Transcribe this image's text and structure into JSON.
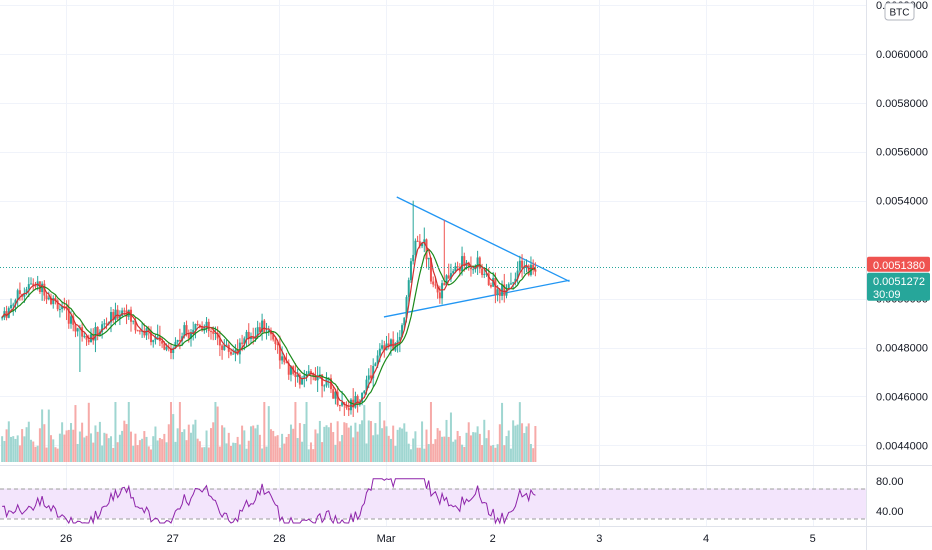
{
  "currency_badge": "BTC",
  "price_axis": {
    "ticks": [
      {
        "value": 0.0062,
        "label": "0.0062000"
      },
      {
        "value": 0.006,
        "label": "0.0060000"
      },
      {
        "value": 0.0058,
        "label": "0.0058000"
      },
      {
        "value": 0.0056,
        "label": "0.0056000"
      },
      {
        "value": 0.0054,
        "label": "0.0054000"
      },
      {
        "value": 0.005,
        "label": "0.0050000"
      },
      {
        "value": 0.0048,
        "label": "0.0048000"
      },
      {
        "value": 0.0046,
        "label": "0.0046000"
      },
      {
        "value": 0.0044,
        "label": "0.0044000"
      }
    ],
    "range": [
      0.00432,
      0.00622
    ]
  },
  "price_tags": {
    "reference": {
      "value": 0.005138,
      "label": "0.0051380",
      "color": "#ef5350"
    },
    "last": {
      "value": 0.0051272,
      "label": "0.0051272",
      "countdown": "30:09",
      "color": "#26a69a"
    }
  },
  "rsi_axis": {
    "ticks": [
      {
        "value": 80,
        "label": "80.00"
      },
      {
        "value": 40,
        "label": "40.00"
      }
    ],
    "band": [
      30,
      70
    ],
    "range": [
      20,
      100
    ]
  },
  "date_axis": {
    "labels": [
      {
        "day": 0.2,
        "label": "26"
      },
      {
        "day": 1.2,
        "label": "27"
      },
      {
        "day": 2.2,
        "label": "28"
      },
      {
        "day": 3.2,
        "label": "Mar"
      },
      {
        "day": 4.2,
        "label": "2"
      },
      {
        "day": 5.2,
        "label": "3"
      },
      {
        "day": 6.2,
        "label": "4"
      },
      {
        "day": 7.2,
        "label": "5"
      }
    ],
    "range": [
      -0.42,
      7.7
    ]
  },
  "colors": {
    "up": "#26a69a",
    "down": "#ef5350",
    "up_volume": "#9fd6d1",
    "down_volume": "#f6aaa8",
    "ma_short": "#d32f2f",
    "ma_long": "#1b8a1b",
    "trendline": "#2196f3",
    "rsi_line": "#8e24aa",
    "rsi_band": "#f3e5fc"
  },
  "chart_data": {
    "type": "candlestick",
    "x_unit": "days",
    "anchors": [
      [
        -0.4,
        0.00492
      ],
      [
        -0.25,
        0.00502
      ],
      [
        -0.1,
        0.00506
      ],
      [
        0.0,
        0.00503
      ],
      [
        0.15,
        0.00496
      ],
      [
        0.3,
        0.00488
      ],
      [
        0.45,
        0.00484
      ],
      [
        0.6,
        0.00491
      ],
      [
        0.75,
        0.00496
      ],
      [
        0.85,
        0.00488
      ],
      [
        1.0,
        0.00485
      ],
      [
        1.15,
        0.00478
      ],
      [
        1.3,
        0.00486
      ],
      [
        1.45,
        0.0049
      ],
      [
        1.6,
        0.00484
      ],
      [
        1.75,
        0.00478
      ],
      [
        1.9,
        0.00484
      ],
      [
        2.05,
        0.00489
      ],
      [
        2.15,
        0.00484
      ],
      [
        2.25,
        0.00472
      ],
      [
        2.4,
        0.00466
      ],
      [
        2.55,
        0.0047
      ],
      [
        2.65,
        0.00465
      ],
      [
        2.75,
        0.00458
      ],
      [
        2.85,
        0.00456
      ],
      [
        2.95,
        0.0046
      ],
      [
        3.05,
        0.00468
      ],
      [
        3.15,
        0.00482
      ],
      [
        3.22,
        0.0048
      ],
      [
        3.32,
        0.00482
      ],
      [
        3.38,
        0.00495
      ],
      [
        3.42,
        0.0051
      ],
      [
        3.47,
        0.00524
      ],
      [
        3.55,
        0.00524
      ],
      [
        3.62,
        0.0051
      ],
      [
        3.7,
        0.00502
      ],
      [
        3.8,
        0.0051
      ],
      [
        3.9,
        0.00514
      ],
      [
        4.05,
        0.00514
      ],
      [
        4.15,
        0.00508
      ],
      [
        4.25,
        0.00503
      ],
      [
        4.35,
        0.00506
      ],
      [
        4.45,
        0.00512
      ],
      [
        4.6,
        0.00512
      ]
    ],
    "trendlines": [
      {
        "name": "upper",
        "from": [
          3.3,
          0.005415
        ],
        "to": [
          4.92,
          0.00507
        ]
      },
      {
        "name": "lower",
        "from": [
          3.18,
          0.004925
        ],
        "to": [
          4.92,
          0.005075
        ]
      }
    ]
  }
}
